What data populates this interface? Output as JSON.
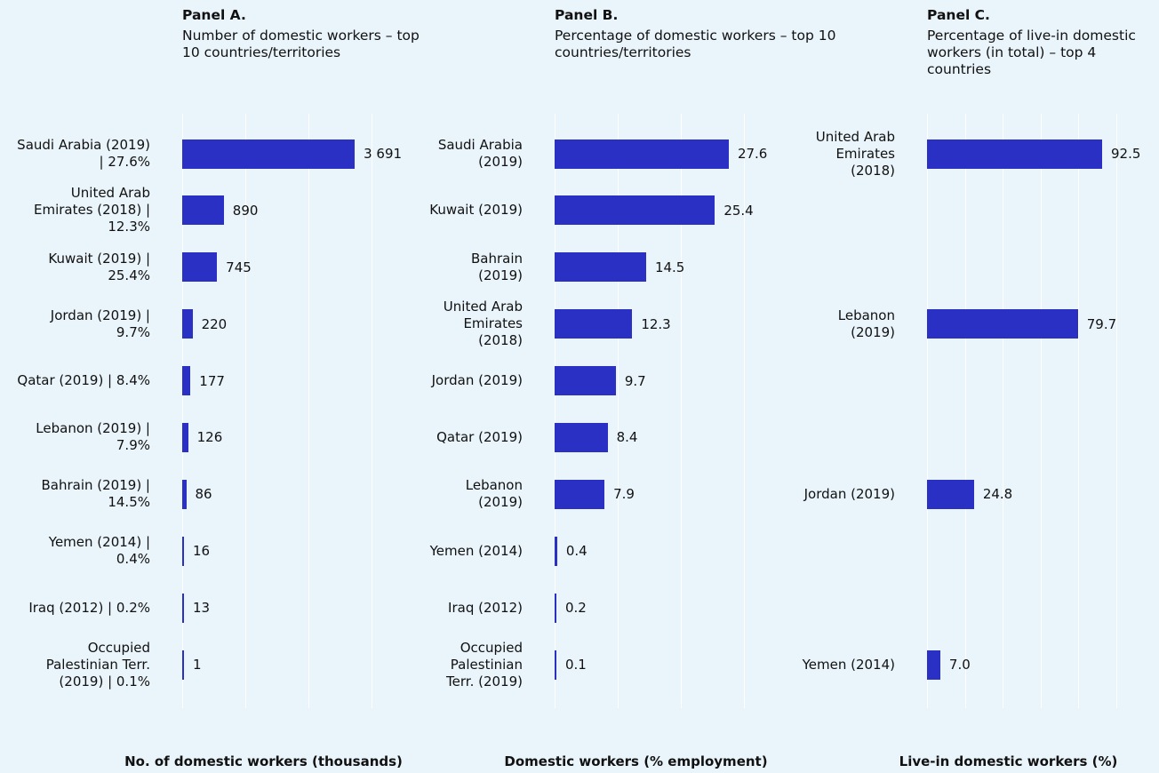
{
  "chart_data": [
    {
      "type": "bar",
      "orientation": "horizontal",
      "title": "Panel A.",
      "subtitle": "Number of domestic workers – top 10 countries/territories",
      "xlabel": "No. of domestic workers (thousands)",
      "categories": [
        "Saudi Arabia (2019) | 27.6%",
        "United Arab Emirates (2018) | 12.3%",
        "Kuwait (2019) | 25.4%",
        "Jordan (2019) | 9.7%",
        "Qatar (2019) | 8.4%",
        "Lebanon (2019) | 7.9%",
        "Bahrain (2019) | 14.5%",
        "Yemen (2014) | 0.4%",
        "Iraq (2012) | 0.2%",
        "Occupied Palestinian Terr. (2019) | 0.1%"
      ],
      "values": [
        3691,
        890,
        745,
        220,
        177,
        126,
        86,
        16,
        13,
        1
      ],
      "value_labels": [
        "3 691",
        "890",
        "745",
        "220",
        "177",
        "126",
        "86",
        "16",
        "13",
        "1"
      ],
      "color": "#2b30c4",
      "xlim": [
        0,
        4050
      ],
      "xticks": [
        0,
        1350,
        2700,
        4050
      ],
      "grid": true
    },
    {
      "type": "bar",
      "orientation": "horizontal",
      "title": "Panel B.",
      "subtitle": "Percentage of domestic workers – top 10 countries/territories",
      "xlabel": "Domestic workers (% employment)",
      "categories": [
        "Saudi Arabia (2019)",
        "Kuwait (2019)",
        "Bahrain (2019)",
        "United Arab Emirates (2018)",
        "Jordan (2019)",
        "Qatar (2019)",
        "Lebanon (2019)",
        "Yemen (2014)",
        "Iraq (2012)",
        "Occupied Palestinian Terr. (2019)"
      ],
      "values": [
        27.6,
        25.4,
        14.5,
        12.3,
        9.7,
        8.4,
        7.9,
        0.4,
        0.2,
        0.1
      ],
      "color": "#2b30c4",
      "xlim": [
        0,
        30
      ],
      "xticks": [
        0,
        10,
        20,
        30
      ],
      "grid": true
    },
    {
      "type": "bar",
      "orientation": "horizontal",
      "title": "Panel C.",
      "subtitle": "Percentage of live-in domestic workers (in total) – top 4 countries",
      "xlabel": "Live-in domestic workers (%)",
      "categories": [
        "United Arab Emirates (2018)",
        "Lebanon (2019)",
        "Jordan (2019)",
        "Yemen (2014)"
      ],
      "values": [
        92.5,
        79.7,
        24.8,
        7.0
      ],
      "value_labels": [
        "92.5",
        "79.7",
        "24.8",
        "7.0"
      ],
      "color": "#2b30c4",
      "xlim": [
        0,
        100
      ],
      "xticks": [
        0,
        20,
        40,
        60,
        80,
        100
      ],
      "grid": true
    }
  ]
}
